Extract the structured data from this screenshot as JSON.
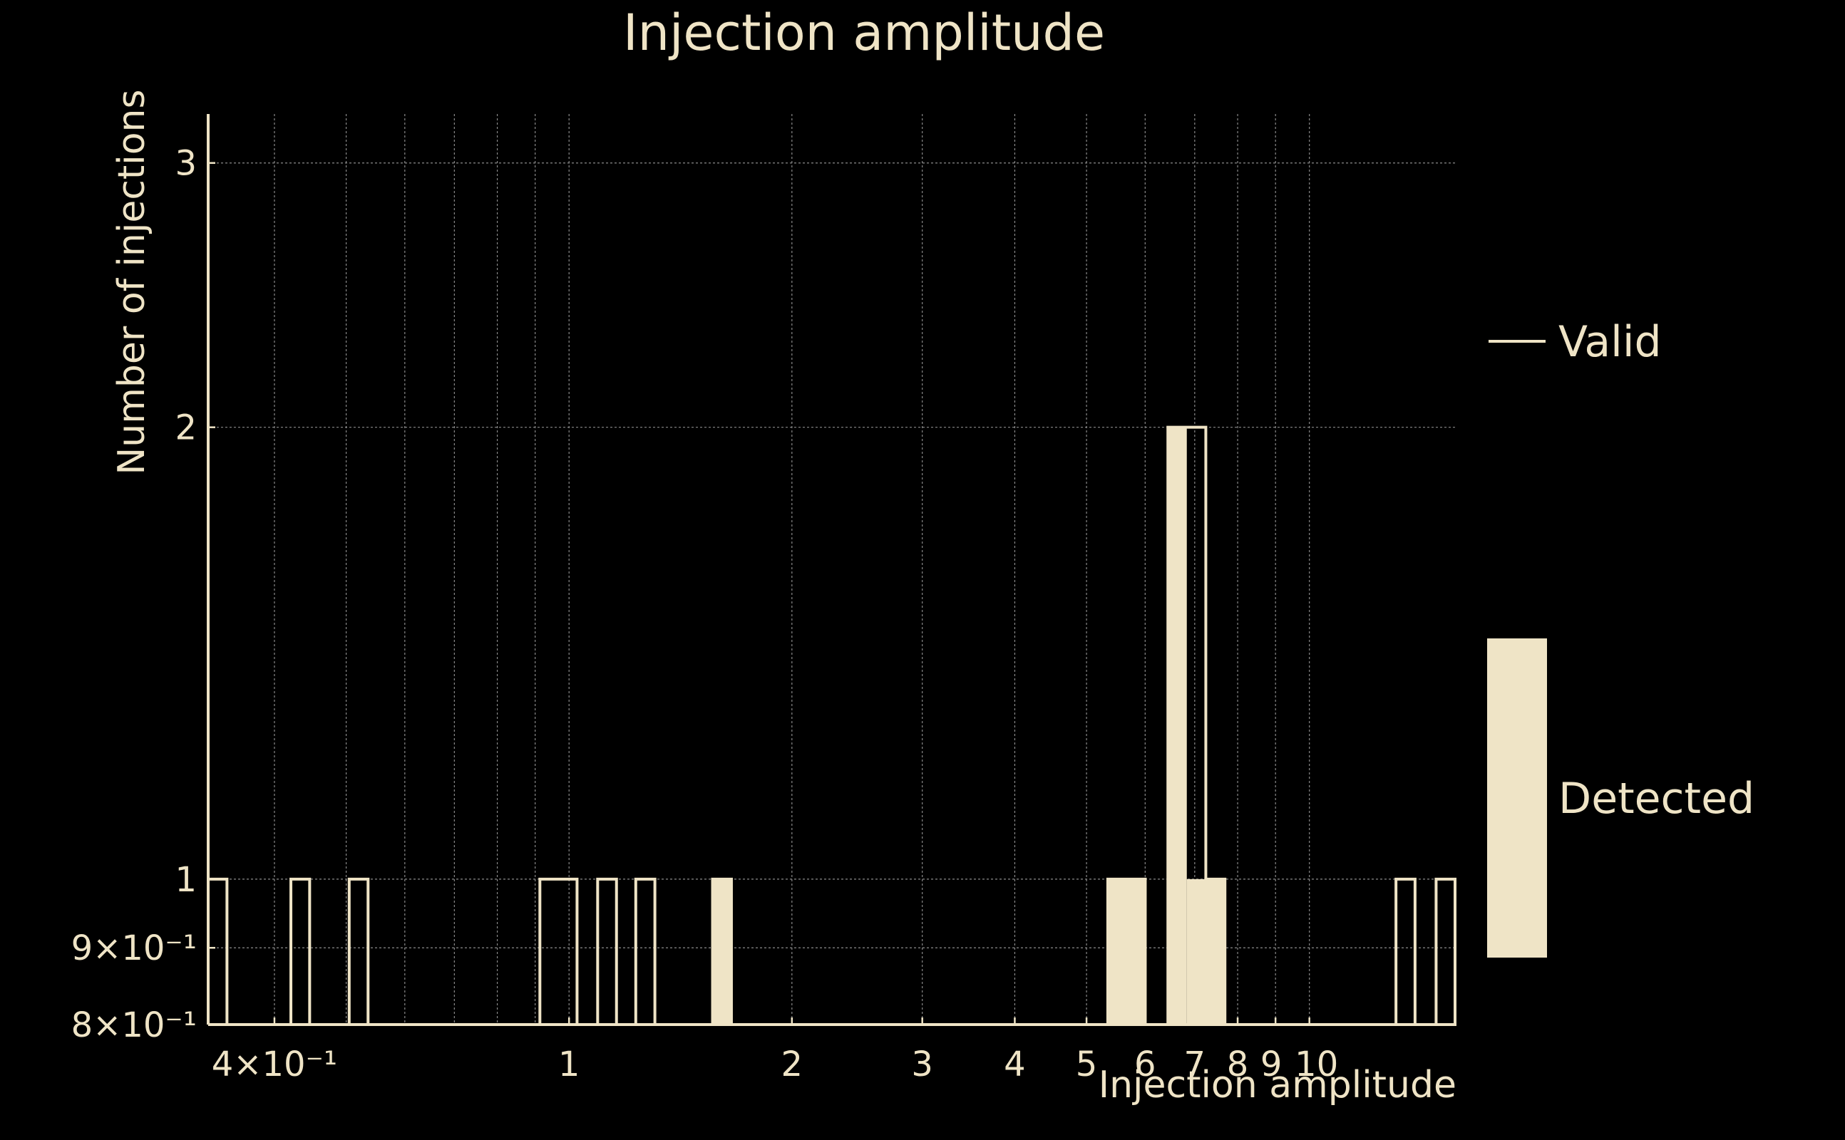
{
  "chart_data": {
    "type": "bar",
    "title": "Injection amplitude",
    "xlabel": "Injection amplitude",
    "ylabel": "Number of injections",
    "xscale": "log",
    "yscale": "log",
    "xlim": [
      0.3255,
      15.8
    ],
    "ylim": [
      0.8,
      3.234
    ],
    "grid": true,
    "legend_position": "right",
    "x_ticks": [
      {
        "value": 0.4,
        "label": "4×10⁻¹"
      },
      {
        "value": 1,
        "label": "1"
      },
      {
        "value": 2,
        "label": "2"
      },
      {
        "value": 3,
        "label": "3"
      },
      {
        "value": 4,
        "label": "4"
      },
      {
        "value": 5,
        "label": "5"
      },
      {
        "value": 6,
        "label": "6"
      },
      {
        "value": 7,
        "label": "7"
      },
      {
        "value": 8,
        "label": "8"
      },
      {
        "value": 9,
        "label": "9"
      },
      {
        "value": 10,
        "label": "10"
      }
    ],
    "x_grid": [
      0.4,
      0.5,
      0.6,
      0.7,
      0.8,
      0.9,
      1,
      2,
      3,
      4,
      5,
      6,
      7,
      8,
      9,
      10
    ],
    "y_ticks": [
      {
        "value": 0.8,
        "label": "8×10⁻¹"
      },
      {
        "value": 0.9,
        "label": "9×10⁻¹"
      },
      {
        "value": 1,
        "label": "1"
      },
      {
        "value": 2,
        "label": "2"
      },
      {
        "value": 3,
        "label": "3"
      }
    ],
    "series": [
      {
        "name": "Valid",
        "style": "outline",
        "bins": [
          {
            "x0": 0.3255,
            "x1": 0.3451,
            "value": 1
          },
          {
            "x0": 0.421,
            "x1": 0.4463,
            "value": 1
          },
          {
            "x0": 0.5047,
            "x1": 0.5352,
            "value": 1
          },
          {
            "x0": 0.9133,
            "x1": 1.0252,
            "value": 1
          },
          {
            "x0": 1.093,
            "x1": 1.159,
            "value": 1
          },
          {
            "x0": 1.2306,
            "x1": 1.306,
            "value": 1
          },
          {
            "x0": 1.5626,
            "x1": 1.657,
            "value": 1
          },
          {
            "x0": 5.342,
            "x1": 6.002,
            "value": 1
          },
          {
            "x0": 6.44,
            "x1": 7.246,
            "value": 2
          },
          {
            "x0": 7.246,
            "x1": 7.69,
            "value": 1
          },
          {
            "x0": 13.09,
            "x1": 13.89,
            "value": 1
          },
          {
            "x0": 14.83,
            "x1": 15.73,
            "value": 1
          }
        ]
      },
      {
        "name": "Detected",
        "style": "filled",
        "bins": [
          {
            "x0": 1.5626,
            "x1": 1.657,
            "value": 1
          },
          {
            "x0": 5.342,
            "x1": 6.002,
            "value": 1
          },
          {
            "x0": 6.44,
            "x1": 6.83,
            "value": 2
          },
          {
            "x0": 6.83,
            "x1": 7.69,
            "value": 1
          }
        ]
      }
    ]
  },
  "legend": {
    "items": [
      {
        "name": "Valid",
        "swatch": "line"
      },
      {
        "name": "Detected",
        "swatch": "filled-rect"
      }
    ]
  },
  "colors": {
    "background": "#000000",
    "foreground": "#efe4c6",
    "grid": "#8a8a8a"
  }
}
